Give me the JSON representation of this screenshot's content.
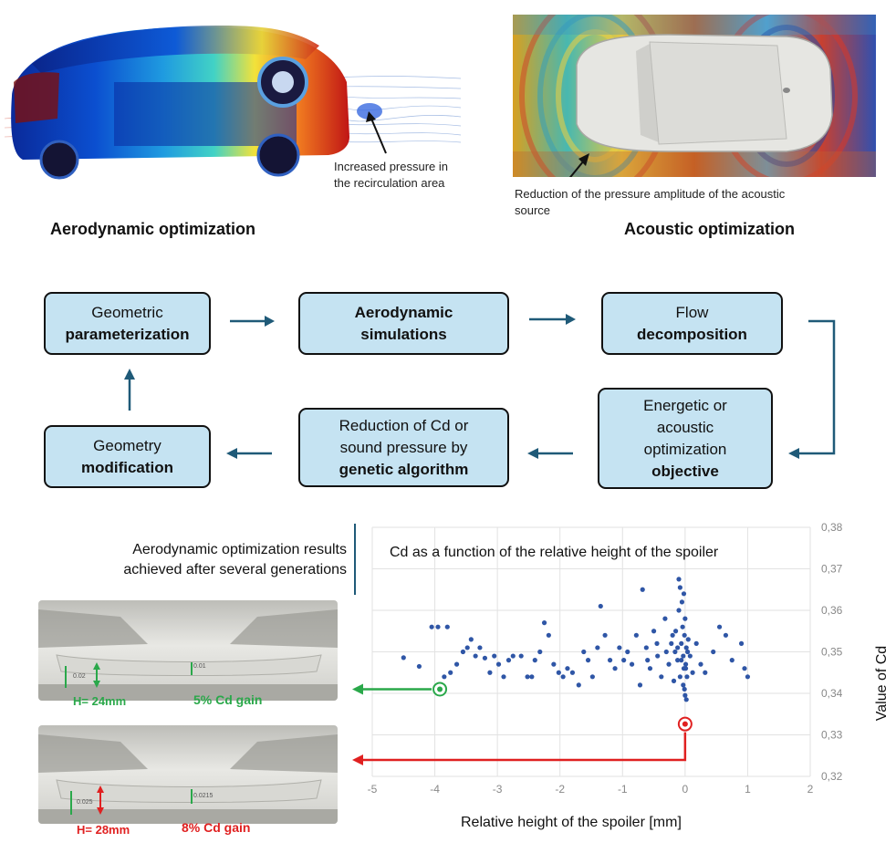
{
  "aero_image": {
    "caption_line1": "Increased pressure in",
    "caption_line2": "the recirculation area",
    "title": "Aerodynamic optimization"
  },
  "acoustic_image": {
    "caption_line1": "Reduction of the pressure amplitude of the acoustic",
    "caption_line2": "source",
    "title": "Acoustic optimization"
  },
  "flowchart": {
    "geometric_param": {
      "line1": "Geometric",
      "line2": "parameterization"
    },
    "aero_sim": {
      "line1": "Aerodynamic",
      "line2": "simulations"
    },
    "flow_decomp": {
      "line1": "Flow",
      "line2": "decomposition"
    },
    "objective": {
      "line1": "Energetic or",
      "line2": "acoustic",
      "line3": "optimization",
      "line4": "objective"
    },
    "reduction": {
      "line1": "Reduction of Cd or",
      "line2": "sound pressure by",
      "line3": "genetic algorithm"
    },
    "geometry_mod": {
      "line1": "Geometry",
      "line2": "modification"
    }
  },
  "results": {
    "heading_line1": "Aerodynamic optimization results",
    "heading_line2": "achieved after several generations",
    "case1": {
      "h_label": "H= 24mm",
      "gain": "5% Cd gain",
      "dim_a": "0.02",
      "dim_b": "0.01",
      "color": "#2aa84a"
    },
    "case2": {
      "h_label": "H= 28mm",
      "gain": "8% Cd gain",
      "dim_a": "0.025",
      "dim_b": "0.0215",
      "color": "#e02020"
    }
  },
  "chart_data": {
    "type": "scatter",
    "title": "Cd as a function of the relative height of the spoiler",
    "xlabel": "Relative height of the spoiler [mm]",
    "ylabel": "Value of Cd",
    "xlim": [
      -5,
      2
    ],
    "ylim": [
      0.32,
      0.38
    ],
    "xticks": [
      "-5",
      "-4",
      "-3",
      "-2",
      "-1",
      "0",
      "1",
      "2"
    ],
    "yticks": [
      "0,32",
      "0,33",
      "0,34",
      "0,35",
      "0,36",
      "0,37",
      "0,38"
    ],
    "grid": true,
    "point_color": "#2f56a6",
    "highlight": [
      {
        "name": "H= 24mm",
        "x": -3.92,
        "y": 0.341,
        "color": "#2aa84a"
      },
      {
        "name": "H= 28mm",
        "x": 0.0,
        "y": 0.3326,
        "color": "#e02020"
      }
    ],
    "points": [
      [
        -4.5,
        0.3486
      ],
      [
        -4.25,
        0.3465
      ],
      [
        -4.05,
        0.356
      ],
      [
        -3.95,
        0.356
      ],
      [
        -3.8,
        0.356
      ],
      [
        -3.85,
        0.344
      ],
      [
        -3.75,
        0.345
      ],
      [
        -3.65,
        0.347
      ],
      [
        -3.55,
        0.35
      ],
      [
        -3.48,
        0.351
      ],
      [
        -3.42,
        0.353
      ],
      [
        -3.35,
        0.349
      ],
      [
        -3.28,
        0.351
      ],
      [
        -3.2,
        0.3485
      ],
      [
        -3.12,
        0.345
      ],
      [
        -3.05,
        0.349
      ],
      [
        -2.98,
        0.347
      ],
      [
        -2.9,
        0.344
      ],
      [
        -2.82,
        0.348
      ],
      [
        -2.75,
        0.349
      ],
      [
        -2.62,
        0.349
      ],
      [
        -2.52,
        0.344
      ],
      [
        -2.45,
        0.344
      ],
      [
        -2.4,
        0.348
      ],
      [
        -2.32,
        0.35
      ],
      [
        -2.25,
        0.357
      ],
      [
        -2.18,
        0.354
      ],
      [
        -2.1,
        0.347
      ],
      [
        -2.02,
        0.345
      ],
      [
        -1.95,
        0.344
      ],
      [
        -1.88,
        0.346
      ],
      [
        -1.8,
        0.345
      ],
      [
        -1.7,
        0.342
      ],
      [
        -1.62,
        0.35
      ],
      [
        -1.55,
        0.348
      ],
      [
        -1.48,
        0.344
      ],
      [
        -1.4,
        0.351
      ],
      [
        -1.35,
        0.361
      ],
      [
        -1.28,
        0.354
      ],
      [
        -1.2,
        0.348
      ],
      [
        -1.12,
        0.346
      ],
      [
        -1.05,
        0.351
      ],
      [
        -0.98,
        0.348
      ],
      [
        -0.92,
        0.35
      ],
      [
        -0.85,
        0.347
      ],
      [
        -0.78,
        0.354
      ],
      [
        -0.72,
        0.342
      ],
      [
        -0.68,
        0.365
      ],
      [
        -0.62,
        0.351
      ],
      [
        -0.56,
        0.346
      ],
      [
        -0.5,
        0.355
      ],
      [
        -0.44,
        0.349
      ],
      [
        -0.38,
        0.344
      ],
      [
        -0.32,
        0.358
      ],
      [
        -0.26,
        0.347
      ],
      [
        -0.22,
        0.352
      ],
      [
        -0.18,
        0.343
      ],
      [
        -0.15,
        0.355
      ],
      [
        -0.12,
        0.348
      ],
      [
        -0.1,
        0.36
      ],
      [
        -0.08,
        0.344
      ],
      [
        -0.06,
        0.352
      ],
      [
        -0.04,
        0.356
      ],
      [
        -0.03,
        0.349
      ],
      [
        -0.02,
        0.346
      ],
      [
        -0.01,
        0.354
      ],
      [
        0.0,
        0.358
      ],
      [
        0.01,
        0.347
      ],
      [
        0.02,
        0.351
      ],
      [
        -0.05,
        0.362
      ],
      [
        -0.02,
        0.364
      ],
      [
        -0.08,
        0.3655
      ],
      [
        -0.1,
        0.3675
      ],
      [
        0.03,
        0.344
      ],
      [
        0.04,
        0.35
      ],
      [
        -0.03,
        0.342
      ],
      [
        -0.01,
        0.341
      ],
      [
        0.0,
        0.3395
      ],
      [
        0.02,
        0.3385
      ],
      [
        0.01,
        0.346
      ],
      [
        0.05,
        0.353
      ],
      [
        0.08,
        0.349
      ],
      [
        0.12,
        0.345
      ],
      [
        0.18,
        0.352
      ],
      [
        0.25,
        0.347
      ],
      [
        0.32,
        0.345
      ],
      [
        0.45,
        0.35
      ],
      [
        0.55,
        0.356
      ],
      [
        0.65,
        0.354
      ],
      [
        0.75,
        0.348
      ],
      [
        0.9,
        0.352
      ],
      [
        0.95,
        0.346
      ],
      [
        1.0,
        0.344
      ],
      [
        -0.3,
        0.35
      ],
      [
        -0.45,
        0.352
      ],
      [
        -0.6,
        0.348
      ],
      [
        -0.16,
        0.35
      ],
      [
        -0.2,
        0.354
      ],
      [
        -0.12,
        0.351
      ],
      [
        -0.06,
        0.348
      ]
    ]
  }
}
